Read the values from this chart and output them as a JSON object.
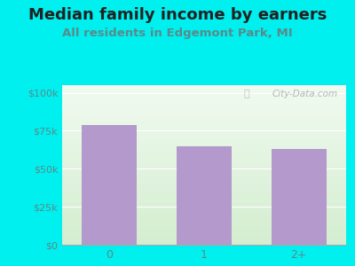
{
  "title": "Median family income by earners",
  "subtitle": "All residents in Edgemont Park, MI",
  "categories": [
    "0",
    "1",
    "2+"
  ],
  "values": [
    79000,
    65000,
    63000
  ],
  "bar_color": "#b399cc",
  "outer_bg": "#00efef",
  "plot_bg_top": "#f0faf0",
  "plot_bg_bottom": "#d4edcf",
  "yticks": [
    0,
    25000,
    50000,
    75000,
    100000
  ],
  "ytick_labels": [
    "$0",
    "$25k",
    "$50k",
    "$75k",
    "$100k"
  ],
  "ylim": [
    0,
    105000
  ],
  "title_fontsize": 13,
  "subtitle_fontsize": 9.5,
  "title_color": "#222222",
  "subtitle_color": "#5a8a8a",
  "tick_color": "#5a8a8a",
  "watermark": "City-Data.com",
  "watermark_color": "#aaaaaa"
}
